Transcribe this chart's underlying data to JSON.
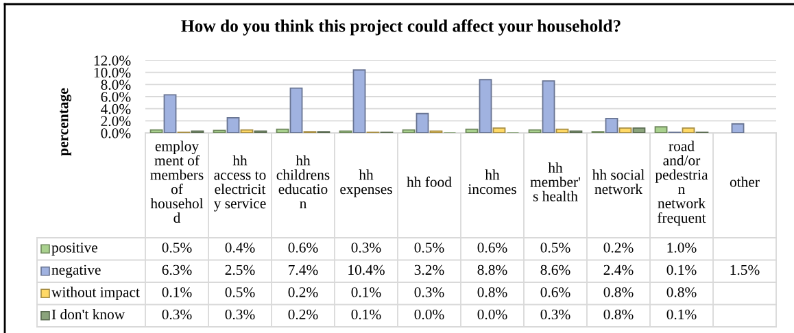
{
  "chart_data": {
    "type": "bar",
    "title": "How do you think this project could affect your household?",
    "ylabel": "percentage",
    "categories": [
      "employment of members of household",
      "hh access to electricity service",
      "hh childrens education",
      "hh expenses",
      "hh food",
      "hh incomes",
      "hh member's health",
      "hh social network",
      "road and/or pedestrian network frequent",
      "other"
    ],
    "series": [
      {
        "name": "positive",
        "color": "#a9d18e",
        "values": [
          0.5,
          0.4,
          0.6,
          0.3,
          0.5,
          0.6,
          0.5,
          0.2,
          1.0,
          null
        ],
        "value_labels": [
          "0.5%",
          "0.4%",
          "0.6%",
          "0.3%",
          "0.5%",
          "0.6%",
          "0.5%",
          "0.2%",
          "1.0%",
          null
        ]
      },
      {
        "name": "negative",
        "color": "#a0b2e0",
        "values": [
          6.3,
          2.5,
          7.4,
          10.4,
          3.2,
          8.8,
          8.6,
          2.4,
          0.1,
          1.5
        ],
        "value_labels": [
          "6.3%",
          "2.5%",
          "7.4%",
          "10.4%",
          "3.2%",
          "8.8%",
          "8.6%",
          "2.4%",
          "0.1%",
          "1.5%"
        ]
      },
      {
        "name": "without impact",
        "color": "#ffd966",
        "values": [
          0.1,
          0.5,
          0.2,
          0.1,
          0.3,
          0.8,
          0.6,
          0.8,
          0.8,
          null
        ],
        "value_labels": [
          "0.1%",
          "0.5%",
          "0.2%",
          "0.1%",
          "0.3%",
          "0.8%",
          "0.6%",
          "0.8%",
          "0.8%",
          null
        ]
      },
      {
        "name": "I don't know",
        "color": "#8ba47c",
        "values": [
          0.3,
          0.3,
          0.2,
          0.1,
          0.0,
          0.0,
          0.3,
          0.8,
          0.1,
          null
        ],
        "value_labels": [
          "0.3%",
          "0.3%",
          "0.2%",
          "0.1%",
          "0.0%",
          "0.0%",
          "0.3%",
          "0.8%",
          "0.1%",
          null
        ]
      }
    ],
    "ylim": [
      0,
      12
    ],
    "yticks": [
      {
        "value": 0,
        "label": "0.0%"
      },
      {
        "value": 2,
        "label": "2.0%"
      },
      {
        "value": 4,
        "label": "4.0%"
      },
      {
        "value": 6,
        "label": "6.0%"
      },
      {
        "value": 8,
        "label": "8.0%"
      },
      {
        "value": 10,
        "label": "10.0%"
      },
      {
        "value": 12,
        "label": "12.0%"
      }
    ],
    "grid": "y",
    "legend": "bottom"
  }
}
